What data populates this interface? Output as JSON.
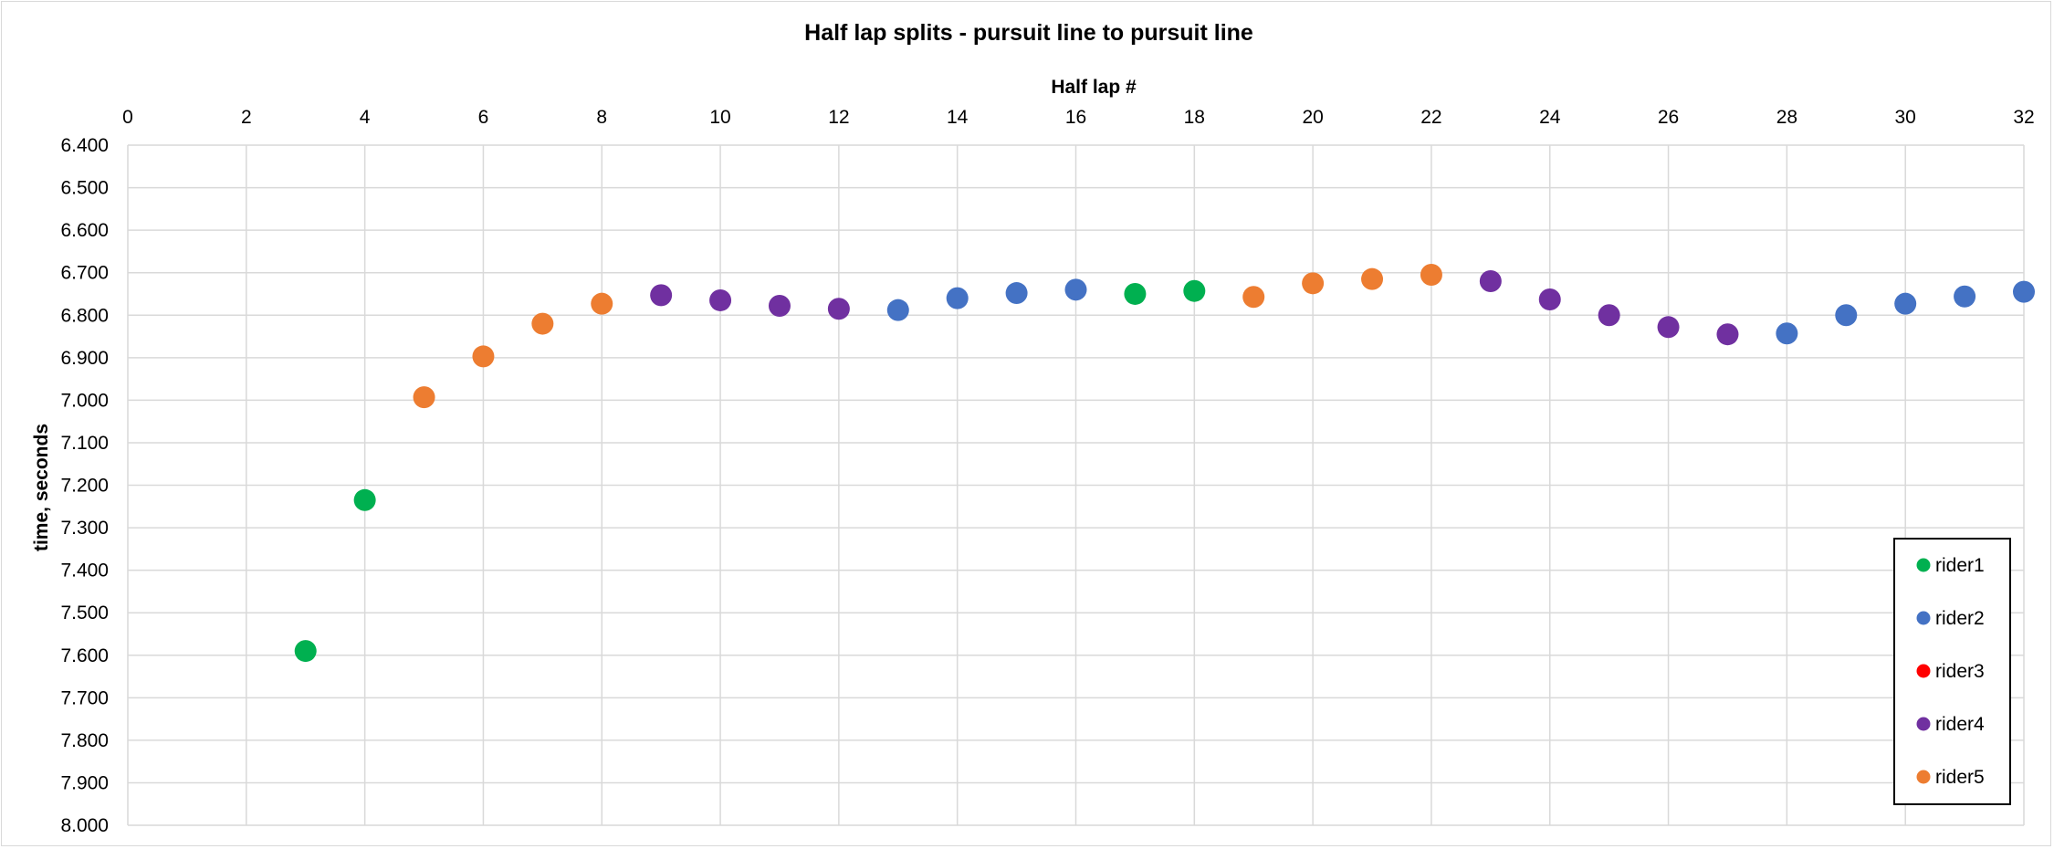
{
  "chart_data": {
    "type": "scatter",
    "title": "Half lap splits - pursuit line to pursuit line",
    "xlabel": "Half lap #",
    "ylabel": "time, seconds",
    "xlim": [
      0,
      32
    ],
    "x_ticks": [
      "0",
      "2",
      "4",
      "6",
      "8",
      "10",
      "12",
      "14",
      "16",
      "18",
      "20",
      "22",
      "24",
      "26",
      "28",
      "30",
      "32"
    ],
    "ylim": [
      6.4,
      8.0
    ],
    "y_reversed": true,
    "y_ticks": [
      "6.400",
      "6.500",
      "6.600",
      "6.700",
      "6.800",
      "6.900",
      "7.000",
      "7.100",
      "7.200",
      "7.300",
      "7.400",
      "7.500",
      "7.600",
      "7.700",
      "7.800",
      "7.900",
      "8.000"
    ],
    "x_axis_position": "top",
    "grid": true,
    "legend_position": "bottom-right",
    "series": [
      {
        "name": "rider1",
        "color": "#00b050",
        "points": [
          [
            3,
            7.59
          ],
          [
            4,
            7.235
          ],
          [
            17,
            6.75
          ],
          [
            18,
            6.743
          ]
        ]
      },
      {
        "name": "rider2",
        "color": "#4472c4",
        "points": [
          [
            13,
            6.788
          ],
          [
            14,
            6.76
          ],
          [
            15,
            6.748
          ],
          [
            16,
            6.74
          ],
          [
            28,
            6.843
          ],
          [
            29,
            6.8
          ],
          [
            30,
            6.773
          ],
          [
            31,
            6.756
          ],
          [
            32,
            6.745
          ]
        ]
      },
      {
        "name": "rider3",
        "color": "#ff0000",
        "points": []
      },
      {
        "name": "rider4",
        "color": "#7030a0",
        "points": [
          [
            9,
            6.753
          ],
          [
            10,
            6.765
          ],
          [
            11,
            6.778
          ],
          [
            12,
            6.785
          ],
          [
            23,
            6.72
          ],
          [
            24,
            6.763
          ],
          [
            25,
            6.8
          ],
          [
            26,
            6.828
          ],
          [
            27,
            6.845
          ]
        ]
      },
      {
        "name": "rider5",
        "color": "#ed7d31",
        "points": [
          [
            5,
            6.993
          ],
          [
            6,
            6.897
          ],
          [
            7,
            6.82
          ],
          [
            8,
            6.773
          ],
          [
            19,
            6.757
          ],
          [
            20,
            6.725
          ],
          [
            21,
            6.715
          ],
          [
            22,
            6.705
          ]
        ]
      }
    ]
  }
}
